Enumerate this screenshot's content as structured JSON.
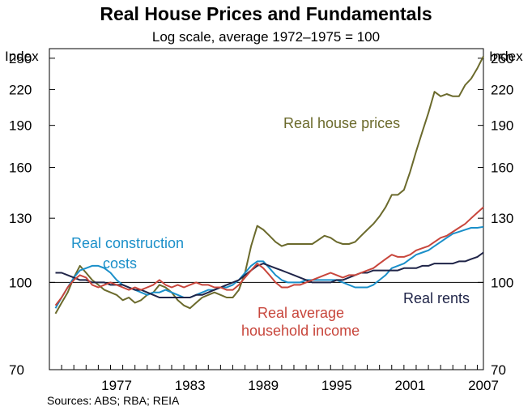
{
  "chart_data": {
    "type": "line",
    "title": "Real House Prices and Fundamentals",
    "subtitle": "Log scale, average 1972–1975 = 100",
    "ylabel_left": "Index",
    "ylabel_right": "Index",
    "y_scale": "log",
    "ylim": [
      70,
      260
    ],
    "y_ticks": [
      70,
      100,
      130,
      160,
      190,
      220,
      250
    ],
    "xlim": [
      1972,
      2007.5
    ],
    "x_ticks": [
      1977,
      1983,
      1989,
      1995,
      2001,
      2007
    ],
    "reference_line": 100,
    "grid": false,
    "source": "Sources: ABS; RBA; REIA",
    "series": [
      {
        "name": "Real house prices",
        "color": "#6b6a2c",
        "points": [
          [
            1972.5,
            88
          ],
          [
            1973,
            92
          ],
          [
            1973.5,
            96
          ],
          [
            1974,
            102
          ],
          [
            1974.5,
            107
          ],
          [
            1975,
            104
          ],
          [
            1975.5,
            101
          ],
          [
            1976,
            99
          ],
          [
            1976.5,
            97
          ],
          [
            1977,
            96
          ],
          [
            1977.5,
            95
          ],
          [
            1978,
            93
          ],
          [
            1978.5,
            94
          ],
          [
            1979,
            92
          ],
          [
            1979.5,
            93
          ],
          [
            1980,
            95
          ],
          [
            1980.5,
            96
          ],
          [
            1981,
            99
          ],
          [
            1981.5,
            98
          ],
          [
            1982,
            96
          ],
          [
            1982.5,
            93
          ],
          [
            1983,
            91
          ],
          [
            1983.5,
            90
          ],
          [
            1984,
            92
          ],
          [
            1984.5,
            94
          ],
          [
            1985,
            95
          ],
          [
            1985.5,
            96
          ],
          [
            1986,
            95
          ],
          [
            1986.5,
            94
          ],
          [
            1987,
            94
          ],
          [
            1987.5,
            97
          ],
          [
            1988,
            104
          ],
          [
            1988.5,
            116
          ],
          [
            1989,
            126
          ],
          [
            1989.5,
            124
          ],
          [
            1990,
            121
          ],
          [
            1990.5,
            118
          ],
          [
            1991,
            116
          ],
          [
            1991.5,
            117
          ],
          [
            1992,
            117
          ],
          [
            1992.5,
            117
          ],
          [
            1993,
            117
          ],
          [
            1993.5,
            117
          ],
          [
            1994,
            119
          ],
          [
            1994.5,
            121
          ],
          [
            1995,
            120
          ],
          [
            1995.5,
            118
          ],
          [
            1996,
            117
          ],
          [
            1996.5,
            117
          ],
          [
            1997,
            118
          ],
          [
            1997.5,
            121
          ],
          [
            1998,
            124
          ],
          [
            1998.5,
            127
          ],
          [
            1999,
            131
          ],
          [
            1999.5,
            136
          ],
          [
            2000,
            143
          ],
          [
            2000.5,
            143
          ],
          [
            2001,
            146
          ],
          [
            2001.5,
            157
          ],
          [
            2002,
            171
          ],
          [
            2002.5,
            185
          ],
          [
            2003,
            200
          ],
          [
            2003.5,
            218
          ],
          [
            2004,
            214
          ],
          [
            2004.5,
            216
          ],
          [
            2005,
            214
          ],
          [
            2005.5,
            214
          ],
          [
            2006,
            224
          ],
          [
            2006.5,
            230
          ],
          [
            2007,
            240
          ],
          [
            2007.5,
            252
          ]
        ]
      },
      {
        "name": "Real construction costs",
        "color": "#1a8fc9",
        "points": [
          [
            1972.5,
            90
          ],
          [
            1973,
            94
          ],
          [
            1973.5,
            98
          ],
          [
            1974,
            102
          ],
          [
            1974.5,
            105
          ],
          [
            1975,
            106
          ],
          [
            1975.5,
            107
          ],
          [
            1976,
            107
          ],
          [
            1976.5,
            106
          ],
          [
            1977,
            104
          ],
          [
            1977.5,
            101
          ],
          [
            1978,
            99
          ],
          [
            1978.5,
            98
          ],
          [
            1979,
            97
          ],
          [
            1979.5,
            96
          ],
          [
            1980,
            95
          ],
          [
            1980.5,
            96
          ],
          [
            1981,
            96
          ],
          [
            1981.5,
            97
          ],
          [
            1982,
            96
          ],
          [
            1982.5,
            95
          ],
          [
            1983,
            94
          ],
          [
            1983.5,
            94
          ],
          [
            1984,
            95
          ],
          [
            1984.5,
            96
          ],
          [
            1985,
            97
          ],
          [
            1985.5,
            97
          ],
          [
            1986,
            98
          ],
          [
            1986.5,
            98
          ],
          [
            1987,
            99
          ],
          [
            1987.5,
            101
          ],
          [
            1988,
            104
          ],
          [
            1988.5,
            107
          ],
          [
            1989,
            109
          ],
          [
            1989.5,
            109
          ],
          [
            1990,
            106
          ],
          [
            1990.5,
            103
          ],
          [
            1991,
            101
          ],
          [
            1991.5,
            100
          ],
          [
            1992,
            100
          ],
          [
            1992.5,
            100
          ],
          [
            1993,
            101
          ],
          [
            1993.5,
            101
          ],
          [
            1994,
            101
          ],
          [
            1994.5,
            101
          ],
          [
            1995,
            101
          ],
          [
            1995.5,
            101
          ],
          [
            1996,
            100
          ],
          [
            1996.5,
            99
          ],
          [
            1997,
            98
          ],
          [
            1997.5,
            98
          ],
          [
            1998,
            98
          ],
          [
            1998.5,
            99
          ],
          [
            1999,
            101
          ],
          [
            1999.5,
            103
          ],
          [
            2000,
            106
          ],
          [
            2000.5,
            107
          ],
          [
            2001,
            108
          ],
          [
            2001.5,
            110
          ],
          [
            2002,
            112
          ],
          [
            2002.5,
            113
          ],
          [
            2003,
            114
          ],
          [
            2003.5,
            116
          ],
          [
            2004,
            118
          ],
          [
            2004.5,
            120
          ],
          [
            2005,
            122
          ],
          [
            2005.5,
            123
          ],
          [
            2006,
            124
          ],
          [
            2006.5,
            125
          ],
          [
            2007,
            125
          ],
          [
            2007.5,
            125.5
          ]
        ]
      },
      {
        "name": "Real rents",
        "color": "#1f2448",
        "points": [
          [
            1972.5,
            104
          ],
          [
            1973,
            104
          ],
          [
            1973.5,
            103
          ],
          [
            1974,
            102
          ],
          [
            1974.5,
            101
          ],
          [
            1975,
            101
          ],
          [
            1975.5,
            100
          ],
          [
            1976,
            100
          ],
          [
            1976.5,
            100
          ],
          [
            1977,
            99
          ],
          [
            1977.5,
            99
          ],
          [
            1978,
            99
          ],
          [
            1978.5,
            98
          ],
          [
            1979,
            97
          ],
          [
            1979.5,
            97
          ],
          [
            1980,
            96
          ],
          [
            1980.5,
            95
          ],
          [
            1981,
            94
          ],
          [
            1981.5,
            94
          ],
          [
            1982,
            94
          ],
          [
            1982.5,
            94
          ],
          [
            1983,
            94
          ],
          [
            1983.5,
            94
          ],
          [
            1984,
            95
          ],
          [
            1984.5,
            95
          ],
          [
            1985,
            96
          ],
          [
            1985.5,
            97
          ],
          [
            1986,
            98
          ],
          [
            1986.5,
            99
          ],
          [
            1987,
            100
          ],
          [
            1987.5,
            101
          ],
          [
            1988,
            103
          ],
          [
            1988.5,
            105
          ],
          [
            1989,
            107
          ],
          [
            1989.5,
            108
          ],
          [
            1990,
            107
          ],
          [
            1990.5,
            106
          ],
          [
            1991,
            105
          ],
          [
            1991.5,
            104
          ],
          [
            1992,
            103
          ],
          [
            1992.5,
            102
          ],
          [
            1993,
            101
          ],
          [
            1993.5,
            100
          ],
          [
            1994,
            100
          ],
          [
            1994.5,
            100
          ],
          [
            1995,
            100
          ],
          [
            1995.5,
            101
          ],
          [
            1996,
            101
          ],
          [
            1996.5,
            102
          ],
          [
            1997,
            103
          ],
          [
            1997.5,
            104
          ],
          [
            1998,
            104
          ],
          [
            1998.5,
            105
          ],
          [
            1999,
            105
          ],
          [
            1999.5,
            105
          ],
          [
            2000,
            105
          ],
          [
            2000.5,
            105
          ],
          [
            2001,
            106
          ],
          [
            2001.5,
            106
          ],
          [
            2002,
            106
          ],
          [
            2002.5,
            107
          ],
          [
            2003,
            107
          ],
          [
            2003.5,
            108
          ],
          [
            2004,
            108
          ],
          [
            2004.5,
            108
          ],
          [
            2005,
            108
          ],
          [
            2005.5,
            109
          ],
          [
            2006,
            109
          ],
          [
            2006.5,
            110
          ],
          [
            2007,
            111
          ],
          [
            2007.5,
            113
          ]
        ]
      },
      {
        "name": "Real average household income",
        "color": "#c8463c",
        "points": [
          [
            1972.5,
            91
          ],
          [
            1973,
            94
          ],
          [
            1973.5,
            98
          ],
          [
            1974,
            101
          ],
          [
            1974.5,
            103
          ],
          [
            1975,
            102
          ],
          [
            1975.5,
            99
          ],
          [
            1976,
            98
          ],
          [
            1976.5,
            99
          ],
          [
            1977,
            100
          ],
          [
            1977.5,
            99
          ],
          [
            1978,
            98
          ],
          [
            1978.5,
            97
          ],
          [
            1979,
            98
          ],
          [
            1979.5,
            97
          ],
          [
            1980,
            98
          ],
          [
            1980.5,
            99
          ],
          [
            1981,
            101
          ],
          [
            1981.5,
            99
          ],
          [
            1982,
            98
          ],
          [
            1982.5,
            99
          ],
          [
            1983,
            98
          ],
          [
            1983.5,
            99
          ],
          [
            1984,
            100
          ],
          [
            1984.5,
            99
          ],
          [
            1985,
            99
          ],
          [
            1985.5,
            98
          ],
          [
            1986,
            98
          ],
          [
            1986.5,
            97
          ],
          [
            1987,
            97
          ],
          [
            1987.5,
            99
          ],
          [
            1988,
            102
          ],
          [
            1988.5,
            105
          ],
          [
            1989,
            108
          ],
          [
            1989.5,
            106
          ],
          [
            1990,
            103
          ],
          [
            1990.5,
            100
          ],
          [
            1991,
            98
          ],
          [
            1991.5,
            98
          ],
          [
            1992,
            99
          ],
          [
            1992.5,
            99
          ],
          [
            1993,
            100
          ],
          [
            1993.5,
            101
          ],
          [
            1994,
            102
          ],
          [
            1994.5,
            103
          ],
          [
            1995,
            104
          ],
          [
            1995.5,
            103
          ],
          [
            1996,
            102
          ],
          [
            1996.5,
            103
          ],
          [
            1997,
            103
          ],
          [
            1997.5,
            104
          ],
          [
            1998,
            105
          ],
          [
            1998.5,
            106
          ],
          [
            1999,
            108
          ],
          [
            1999.5,
            110
          ],
          [
            2000,
            112
          ],
          [
            2000.5,
            111
          ],
          [
            2001,
            111
          ],
          [
            2001.5,
            112
          ],
          [
            2002,
            114
          ],
          [
            2002.5,
            115
          ],
          [
            2003,
            116
          ],
          [
            2003.5,
            118
          ],
          [
            2004,
            120
          ],
          [
            2004.5,
            121
          ],
          [
            2005,
            123
          ],
          [
            2005.5,
            125
          ],
          [
            2006,
            127
          ],
          [
            2006.5,
            130
          ],
          [
            2007,
            133
          ],
          [
            2007.5,
            136
          ]
        ]
      }
    ],
    "annotations": [
      {
        "text": "Real house prices",
        "series": 0
      },
      {
        "text": "Real construction",
        "series": 1
      },
      {
        "text": "costs",
        "series": 1
      },
      {
        "text": "Real rents",
        "series": 2
      },
      {
        "text": "Real average",
        "series": 3
      },
      {
        "text": "household income",
        "series": 3
      }
    ]
  }
}
